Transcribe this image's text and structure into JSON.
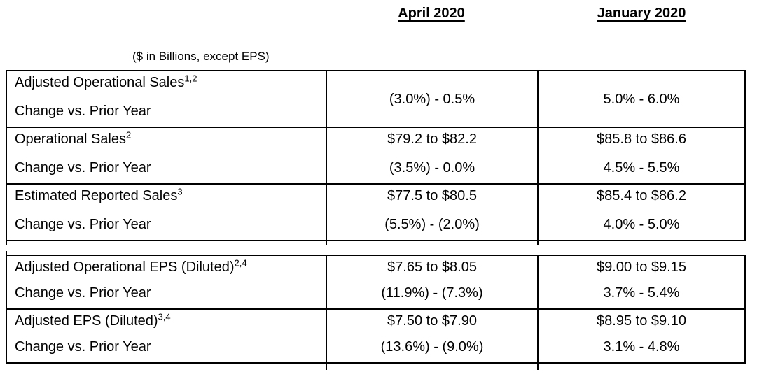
{
  "page": {
    "columns": {
      "april": "April 2020",
      "january": "January 2020"
    },
    "unit_note": "($ in Billions, except EPS)",
    "change_label": "Change vs. Prior Year"
  },
  "blocks": {
    "sales": {
      "rows": [
        {
          "label": "Adjusted Operational Sales",
          "footnote": "1,2",
          "april_value": "",
          "april_change": "(3.0%) - 0.5%",
          "january_value": "",
          "january_change": "5.0% - 6.0%"
        },
        {
          "label": "Operational Sales",
          "footnote": "2",
          "april_value": "$79.2 to $82.2",
          "april_change": "(3.5%) - 0.0%",
          "january_value": "$85.8 to $86.6",
          "january_change": "4.5% - 5.5%"
        },
        {
          "label": "Estimated Reported Sales",
          "footnote": "3",
          "april_value": "$77.5 to $80.5",
          "april_change": "(5.5%) - (2.0%)",
          "january_value": "$85.4 to $86.2",
          "january_change": "4.0% - 5.0%"
        }
      ]
    },
    "eps": {
      "rows": [
        {
          "label": "Adjusted Operational EPS (Diluted)",
          "footnote": "2,4",
          "april_value": "$7.65 to $8.05",
          "april_change": "(11.9%) - (7.3%)",
          "january_value": "$9.00 to $9.15",
          "january_change": "3.7% - 5.4%"
        },
        {
          "label": "Adjusted EPS (Diluted)",
          "footnote": "3,4",
          "april_value": "$7.50 to $7.90",
          "april_change": "(13.6%) - (9.0%)",
          "january_value": "$8.95 to $9.10",
          "january_change": "3.1% - 4.8%"
        }
      ]
    }
  }
}
